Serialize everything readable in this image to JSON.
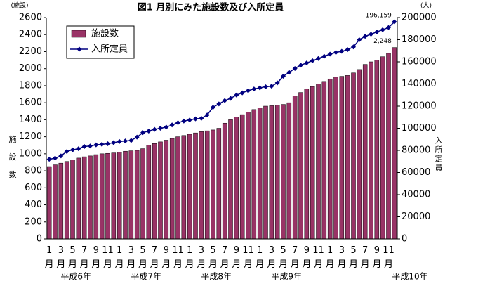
{
  "chart_data": {
    "type": "bar",
    "title": "図1  月別にみた施設数及び入所定員",
    "y_unit": "(施設)",
    "y2_unit": "(人)",
    "ylabel": "施設数",
    "y2label": "入所定員",
    "categories": [
      "1月",
      null,
      "3月",
      null,
      "5月",
      null,
      "7月",
      null,
      "9月",
      null,
      "11月",
      null,
      "1月",
      null,
      "3月",
      null,
      "5月",
      null,
      "7月",
      null,
      "9月",
      null,
      "11月",
      null,
      "1月",
      null,
      "3月",
      null,
      "5月",
      null,
      "7月",
      null,
      "9月",
      null,
      "11月",
      null,
      "1月",
      null,
      "3月",
      null,
      "5月",
      null,
      "7月",
      null,
      "9月",
      null,
      "11月",
      null,
      "1月",
      null,
      "3月",
      null,
      "5月",
      null,
      "7月",
      null,
      "9月",
      null,
      "11月",
      null
    ],
    "year_labels": [
      "平成6年",
      "平成7年",
      "平成8年",
      "平成9年",
      "平成10年"
    ],
    "series": [
      {
        "name": "施設数",
        "type": "bar",
        "color": "#993366",
        "values": [
          850,
          870,
          890,
          910,
          930,
          950,
          965,
          975,
          990,
          1000,
          1005,
          1010,
          1020,
          1030,
          1035,
          1040,
          1060,
          1100,
          1120,
          1140,
          1160,
          1180,
          1200,
          1215,
          1230,
          1245,
          1260,
          1270,
          1280,
          1300,
          1360,
          1400,
          1430,
          1460,
          1490,
          1520,
          1540,
          1560,
          1565,
          1570,
          1580,
          1600,
          1680,
          1720,
          1760,
          1790,
          1820,
          1850,
          1880,
          1900,
          1910,
          1920,
          1950,
          1990,
          2050,
          2080,
          2100,
          2140,
          2180,
          2248
        ],
        "value_labels": [
          null,
          null,
          null,
          null,
          null,
          null,
          null,
          null,
          null,
          null,
          null,
          null,
          null,
          null,
          null,
          null,
          null,
          null,
          null,
          null,
          null,
          null,
          null,
          null,
          null,
          null,
          null,
          null,
          null,
          null,
          null,
          null,
          null,
          null,
          null,
          null,
          null,
          null,
          null,
          null,
          null,
          null,
          null,
          null,
          null,
          null,
          null,
          null,
          null,
          null,
          null,
          null,
          null,
          null,
          null,
          null,
          null,
          null,
          null,
          "2,248"
        ]
      },
      {
        "name": "入所定員",
        "type": "line",
        "axis": "y2",
        "color": "#000080",
        "values": [
          72000,
          73000,
          75000,
          79000,
          80500,
          81500,
          83500,
          84000,
          85000,
          85500,
          86000,
          87000,
          88000,
          88500,
          89000,
          92000,
          96000,
          97500,
          99000,
          100000,
          101000,
          103000,
          105000,
          106500,
          107500,
          108500,
          109000,
          112000,
          119000,
          122000,
          125000,
          127000,
          130000,
          132000,
          134000,
          135500,
          136500,
          137500,
          138000,
          141000,
          147000,
          150500,
          154000,
          157000,
          159000,
          161000,
          163000,
          165000,
          167000,
          168500,
          169500,
          171000,
          173500,
          180000,
          183000,
          185000,
          187000,
          189000,
          191000,
          196159
        ],
        "value_labels": [
          null,
          null,
          null,
          null,
          null,
          null,
          null,
          null,
          null,
          null,
          null,
          null,
          null,
          null,
          null,
          null,
          null,
          null,
          null,
          null,
          null,
          null,
          null,
          null,
          null,
          null,
          null,
          null,
          null,
          null,
          null,
          null,
          null,
          null,
          null,
          null,
          null,
          null,
          null,
          null,
          null,
          null,
          null,
          null,
          null,
          null,
          null,
          null,
          null,
          null,
          null,
          null,
          null,
          null,
          null,
          null,
          null,
          null,
          null,
          "196,159"
        ]
      }
    ],
    "ylim": [
      0,
      2600
    ],
    "yticks": [
      0,
      200,
      400,
      600,
      800,
      1000,
      1200,
      1400,
      1600,
      1800,
      2000,
      2200,
      2400,
      2600
    ],
    "y2lim": [
      0,
      200000
    ],
    "y2ticks": [
      0,
      20000,
      40000,
      60000,
      80000,
      100000,
      120000,
      140000,
      160000,
      180000,
      200000
    ],
    "grid": false
  }
}
